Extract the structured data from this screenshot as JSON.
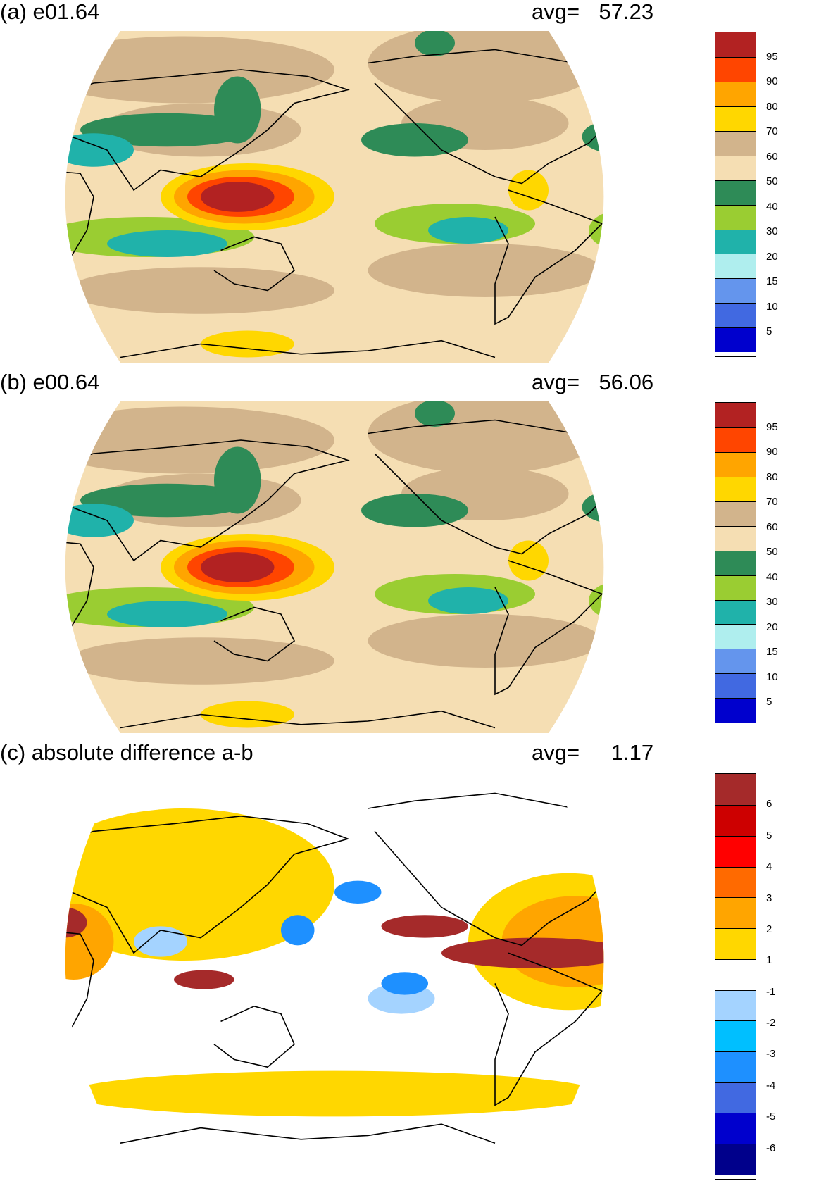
{
  "panels": [
    {
      "id": "a",
      "title": "(a) e01.64",
      "avg_label": "avg=",
      "avg_value": "57.23",
      "colorbar": {
        "labels": [
          "95",
          "90",
          "80",
          "70",
          "60",
          "50",
          "40",
          "30",
          "20",
          "15",
          "10",
          "5"
        ],
        "colors": [
          "#b22222",
          "#ff4500",
          "#ffa500",
          "#ffd700",
          "#d2b48c",
          "#f5deb3",
          "#2e8b57",
          "#9acd32",
          "#20b2aa",
          "#afeeee",
          "#6495ed",
          "#4169e1",
          "#0000cd"
        ]
      },
      "map": {
        "background": "#f5deb3",
        "regions": [
          {
            "color": "#d2b48c",
            "type": "band-north"
          },
          {
            "color": "#d2b48c",
            "type": "band-south"
          },
          {
            "color": "#2e8b57",
            "type": "storm-north"
          },
          {
            "color": "#9acd32",
            "type": "subtrop-south"
          },
          {
            "color": "#20b2aa",
            "type": "dry-west"
          },
          {
            "color": "#ffd700",
            "type": "warm-pool-outer"
          },
          {
            "color": "#ffa500",
            "type": "warm-pool-mid"
          },
          {
            "color": "#ff4500",
            "type": "warm-pool-inner"
          },
          {
            "color": "#b22222",
            "type": "warm-pool-core"
          }
        ]
      }
    },
    {
      "id": "b",
      "title": "(b) e00.64",
      "avg_label": "avg=",
      "avg_value": "56.06",
      "colorbar": {
        "labels": [
          "95",
          "90",
          "80",
          "70",
          "60",
          "50",
          "40",
          "30",
          "20",
          "15",
          "10",
          "5"
        ],
        "colors": [
          "#b22222",
          "#ff4500",
          "#ffa500",
          "#ffd700",
          "#d2b48c",
          "#f5deb3",
          "#2e8b57",
          "#9acd32",
          "#20b2aa",
          "#afeeee",
          "#6495ed",
          "#4169e1",
          "#0000cd"
        ]
      },
      "map": {
        "background": "#f5deb3",
        "regions": [
          {
            "color": "#d2b48c",
            "type": "band-north"
          },
          {
            "color": "#d2b48c",
            "type": "band-south"
          },
          {
            "color": "#2e8b57",
            "type": "storm-north"
          },
          {
            "color": "#9acd32",
            "type": "subtrop-south"
          },
          {
            "color": "#20b2aa",
            "type": "dry-west"
          },
          {
            "color": "#ffd700",
            "type": "warm-pool-outer"
          },
          {
            "color": "#ffa500",
            "type": "warm-pool-mid"
          },
          {
            "color": "#ff4500",
            "type": "warm-pool-inner"
          },
          {
            "color": "#b22222",
            "type": "warm-pool-core"
          }
        ]
      }
    },
    {
      "id": "c",
      "title": "(c) absolute difference a-b",
      "avg_label": "avg=",
      "avg_value": "1.17",
      "colorbar": {
        "labels": [
          "6",
          "5",
          "4",
          "3",
          "2",
          "1",
          "-1",
          "-2",
          "-3",
          "-4",
          "-5",
          "-6"
        ],
        "colors": [
          "#a52a2a",
          "#cd0000",
          "#ff0000",
          "#ff6a00",
          "#ffa500",
          "#ffd700",
          "#ffffff",
          "#a4d3ff",
          "#00bfff",
          "#1e90ff",
          "#4169e1",
          "#0000cd",
          "#00008b"
        ]
      },
      "map": {
        "background": "#ffffff",
        "regions": [
          {
            "color": "#ffd700",
            "type": "diff-yellow"
          },
          {
            "color": "#ffa500",
            "type": "diff-orange"
          },
          {
            "color": "#a52a2a",
            "type": "diff-red"
          },
          {
            "color": "#a4d3ff",
            "type": "diff-lightblue"
          },
          {
            "color": "#1e90ff",
            "type": "diff-blue"
          }
        ]
      }
    }
  ]
}
